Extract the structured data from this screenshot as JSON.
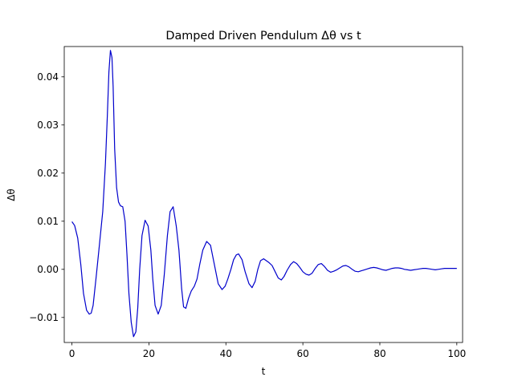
{
  "chart_data": {
    "type": "line",
    "title": "Damped Driven Pendulum Δθ vs t",
    "xlabel": "t",
    "ylabel": "Δθ",
    "xlim": [
      -2,
      101.5
    ],
    "ylim": [
      -0.0152,
      0.0463
    ],
    "x_ticks": [
      0,
      20,
      40,
      60,
      80,
      100
    ],
    "y_ticks": [
      -0.01,
      0.0,
      0.01,
      0.02,
      0.03,
      0.04
    ],
    "x_tick_labels": [
      "0",
      "20",
      "40",
      "60",
      "80",
      "100"
    ],
    "y_tick_labels": [
      "−0.01",
      "0.00",
      "0.01",
      "0.02",
      "0.03",
      "0.04"
    ],
    "grid": false,
    "legend": "none",
    "line_color": "#0000cc",
    "series": [
      {
        "x": [
          0,
          0.7,
          1.5,
          2.3,
          3.0,
          3.8,
          4.5,
          5.0,
          5.5,
          6.3,
          7.0,
          8.0,
          8.7,
          9.2,
          9.6,
          10.0,
          10.4,
          10.7,
          11.1,
          11.6,
          12.1,
          12.6,
          13.2,
          13.8,
          14.3,
          14.8,
          15.4,
          16.0,
          16.6,
          17.1,
          17.6,
          18.2,
          19.0,
          19.8,
          20.5,
          21.0,
          21.6,
          22.4,
          23.2,
          24.0,
          24.8,
          25.5,
          26.3,
          27.1,
          27.8,
          28.5,
          29.0,
          29.6,
          30.3,
          31.0,
          31.8,
          32.5,
          33.2,
          34.0,
          35.0,
          36.0,
          37.0,
          38.0,
          39.0,
          39.8,
          40.5,
          41.3,
          42.0,
          42.7,
          43.3,
          44.2,
          45.0,
          46.0,
          46.8,
          47.6,
          48.3,
          49.0,
          49.8,
          50.5,
          51.2,
          52.0,
          52.8,
          53.6,
          54.4,
          55.1,
          55.9,
          56.8,
          57.6,
          58.4,
          59.2,
          60.0,
          60.8,
          61.6,
          62.4,
          63.2,
          64.0,
          64.8,
          65.6,
          66.4,
          67.2,
          68.0,
          68.8,
          69.6,
          70.4,
          71.2,
          72.0,
          72.8,
          73.6,
          74.4,
          75.2,
          76.0,
          76.8,
          77.6,
          78.4,
          79.2,
          80.0,
          80.8,
          81.6,
          82.4,
          83.2,
          84.0,
          84.8,
          85.6,
          86.4,
          87.2,
          88.0,
          88.8,
          89.6,
          90.4,
          91.2,
          92.0,
          92.8,
          93.6,
          94.4,
          95.2,
          96.0,
          96.8,
          97.6,
          98.4,
          99.2,
          100.0
        ],
        "y": [
          0.0099,
          0.0091,
          0.0065,
          0.001,
          -0.005,
          -0.0085,
          -0.0093,
          -0.0091,
          -0.0075,
          -0.0015,
          0.004,
          0.012,
          0.022,
          0.032,
          0.041,
          0.0455,
          0.044,
          0.038,
          0.025,
          0.017,
          0.014,
          0.0132,
          0.013,
          0.01,
          0.003,
          -0.005,
          -0.011,
          -0.014,
          -0.013,
          -0.008,
          0.0,
          0.007,
          0.0102,
          0.009,
          0.004,
          -0.002,
          -0.0075,
          -0.0093,
          -0.0075,
          -0.001,
          0.007,
          0.012,
          0.013,
          0.009,
          0.004,
          -0.004,
          -0.0078,
          -0.0081,
          -0.006,
          -0.0045,
          -0.0035,
          -0.002,
          0.001,
          0.004,
          0.0058,
          0.005,
          0.001,
          -0.003,
          -0.0042,
          -0.0035,
          -0.002,
          0.0,
          0.002,
          0.003,
          0.0032,
          0.002,
          -0.0005,
          -0.003,
          -0.0038,
          -0.0025,
          0.0,
          0.0018,
          0.0022,
          0.0018,
          0.0014,
          0.0008,
          -0.0005,
          -0.0018,
          -0.0022,
          -0.0015,
          -0.0002,
          0.001,
          0.0016,
          0.0012,
          0.0004,
          -0.0005,
          -0.001,
          -0.0012,
          -0.0008,
          0.0002,
          0.001,
          0.0012,
          0.0006,
          -0.0002,
          -0.0006,
          -0.0004,
          -0.0001,
          0.0003,
          0.0007,
          0.0008,
          0.0005,
          0.0,
          -0.0004,
          -0.0005,
          -0.0003,
          -0.0001,
          0.0001,
          0.0003,
          0.0004,
          0.0003,
          0.0001,
          -0.0001,
          -0.0002,
          0.0,
          0.0002,
          0.0003,
          0.0003,
          0.0002,
          0.0,
          -0.0001,
          -0.0002,
          -0.0001,
          0.0,
          0.0001,
          0.0002,
          0.0002,
          0.0001,
          0.0,
          -0.0001,
          0.0,
          0.0001,
          0.0002,
          0.0002,
          0.0002,
          0.0002,
          0.0002
        ]
      }
    ]
  }
}
